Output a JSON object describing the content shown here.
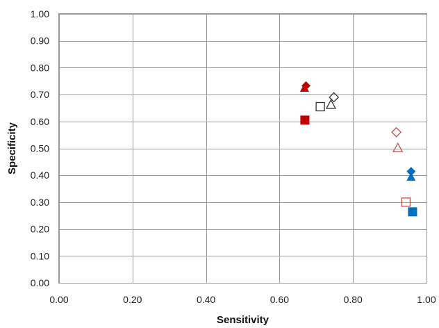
{
  "chart_data": {
    "type": "scatter",
    "xlabel": "Sensitivity",
    "ylabel": "Specificity",
    "xlim": [
      0,
      1
    ],
    "ylim": [
      0,
      1
    ],
    "x_ticks": [
      "0.00",
      "0.20",
      "0.40",
      "0.60",
      "0.80",
      "1.00"
    ],
    "y_ticks": [
      "0.00",
      "0.10",
      "0.20",
      "0.30",
      "0.40",
      "0.50",
      "0.60",
      "0.70",
      "0.80",
      "0.90",
      "1.00"
    ],
    "grid": true,
    "legend": "none",
    "points": [
      {
        "x": 0.672,
        "y": 0.733,
        "marker": "diamond",
        "filled": true,
        "color": "#c00000"
      },
      {
        "x": 0.668,
        "y": 0.725,
        "marker": "triangle",
        "filled": true,
        "color": "#c00000"
      },
      {
        "x": 0.669,
        "y": 0.605,
        "marker": "square",
        "filled": true,
        "color": "#c00000"
      },
      {
        "x": 0.748,
        "y": 0.69,
        "marker": "diamond",
        "filled": false,
        "color": "#333333"
      },
      {
        "x": 0.74,
        "y": 0.663,
        "marker": "triangle",
        "filled": false,
        "color": "#333333"
      },
      {
        "x": 0.711,
        "y": 0.655,
        "marker": "square",
        "filled": false,
        "color": "#333333"
      },
      {
        "x": 0.918,
        "y": 0.56,
        "marker": "diamond",
        "filled": false,
        "color": "#c0504d"
      },
      {
        "x": 0.922,
        "y": 0.502,
        "marker": "triangle",
        "filled": false,
        "color": "#c0504d"
      },
      {
        "x": 0.944,
        "y": 0.3,
        "marker": "square",
        "filled": false,
        "color": "#c0504d"
      },
      {
        "x": 0.958,
        "y": 0.414,
        "marker": "diamond",
        "filled": true,
        "color": "#0070c0"
      },
      {
        "x": 0.958,
        "y": 0.394,
        "marker": "triangle",
        "filled": true,
        "color": "#0070c0"
      },
      {
        "x": 0.962,
        "y": 0.264,
        "marker": "square",
        "filled": true,
        "color": "#0070c0"
      }
    ]
  }
}
